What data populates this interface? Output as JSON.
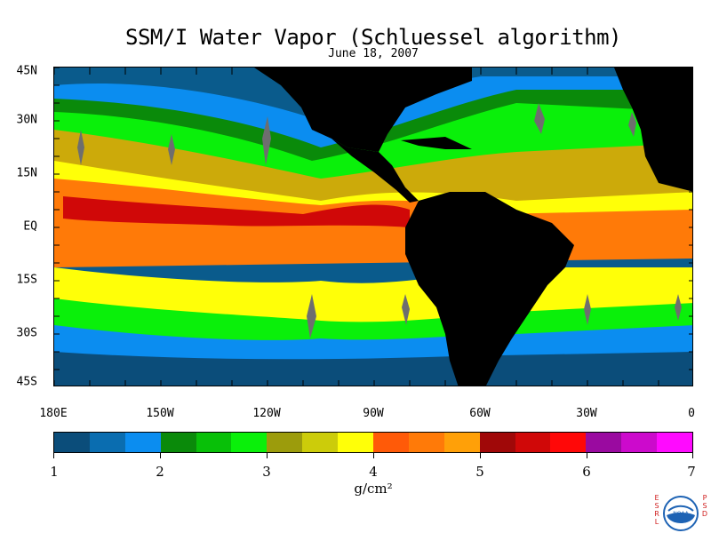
{
  "title": "SSM/I Water Vapor (Schluessel algorithm)",
  "date": "June 18, 2007",
  "map": {
    "lat_labels": [
      "45N",
      "30N",
      "15N",
      "EQ",
      "15S",
      "30S",
      "45S"
    ],
    "lon_labels": [
      "180E",
      "150W",
      "120W",
      "90W",
      "60W",
      "30W",
      "0"
    ],
    "land_color": "#000000",
    "data_gap_color": "#6e6e6e"
  },
  "colorbar": {
    "min": 1,
    "max": 7,
    "units": "g/cm²",
    "tick_labels": [
      "1",
      "2",
      "3",
      "4",
      "5",
      "6",
      "7"
    ],
    "colors": [
      "#0b4d7a",
      "#0a6db0",
      "#0b8df0",
      "#0a8a0a",
      "#08c008",
      "#0af00a",
      "#9c9c0c",
      "#cccc0a",
      "#ffff08",
      "#ff5a08",
      "#ff7a08",
      "#ffa008",
      "#a00808",
      "#d00808",
      "#ff0808",
      "#9a0aa0",
      "#cc0acc",
      "#ff0aff"
    ]
  },
  "logo": {
    "left_letters": "ESRL",
    "right_letters": "PSD",
    "center_text": "NOAA"
  }
}
